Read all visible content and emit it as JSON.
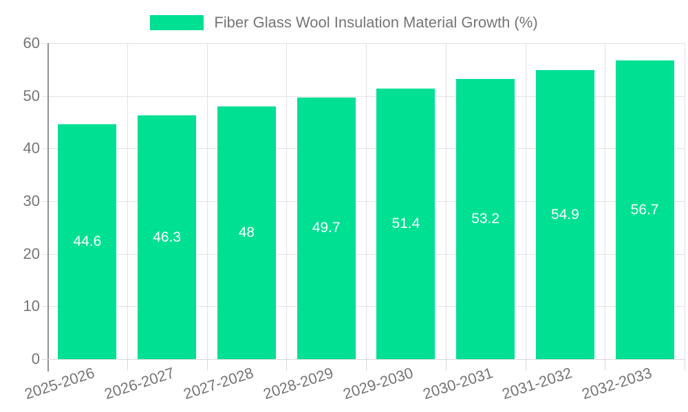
{
  "chart_data": {
    "type": "bar",
    "title": "Fiber Glass Wool Insulation Material Growth (%)",
    "legend": {
      "label": "Fiber Glass Wool Insulation Material Growth (%)",
      "position": "top"
    },
    "categories": [
      "2025-2026",
      "2026-2027",
      "2027-2028",
      "2028-2029",
      "2029-2030",
      "2030-2031",
      "2031-2032",
      "2032-2033"
    ],
    "series": [
      {
        "name": "Fiber Glass Wool Insulation Material Growth (%)",
        "values": [
          44.6,
          46.3,
          48,
          49.7,
          51.4,
          53.2,
          54.9,
          56.7
        ],
        "data_labels": [
          "44.6",
          "46.3",
          "48",
          "49.7",
          "51.4",
          "53.2",
          "54.9",
          "56.7"
        ]
      }
    ],
    "xlabel": "",
    "ylabel": "",
    "ylim": [
      0,
      60
    ],
    "yticks": [
      0,
      10,
      20,
      30,
      40,
      50,
      60
    ],
    "grid": "on",
    "colors": {
      "bar": "#00E093",
      "bar_value_label": "#ffffff",
      "axis_text": "#757575",
      "gridline": "#e2e2e2",
      "y_axis_line": "#8f8f8f",
      "x_axis_line": "#d9d9d9",
      "background": "#ffffff"
    }
  }
}
